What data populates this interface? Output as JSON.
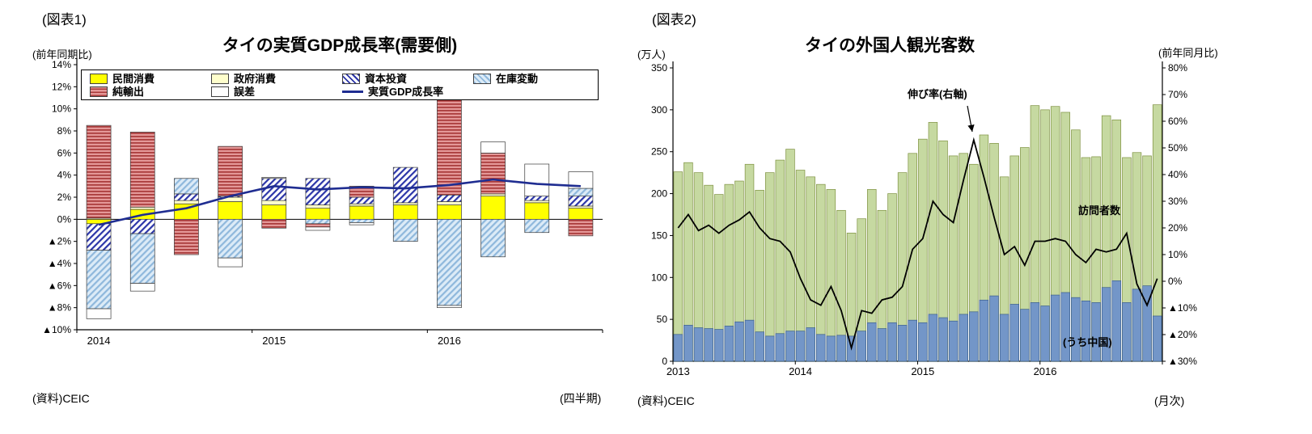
{
  "fig1": {
    "label": "(図表1)",
    "y_axis_caption": "(前年同期比)",
    "source": "(資料)CEIC",
    "x_caption": "(四半期)"
  },
  "fig2": {
    "label": "(図表2)",
    "y_axis_caption_left": "(万人)",
    "y_axis_caption_right": "(前年同月比)",
    "source": "(資料)CEIC",
    "x_caption": "(月次)"
  },
  "chart_data": [
    {
      "type": "bar",
      "variant": "stacked-bar-with-line",
      "title": "タイの実質GDP成長率(需要側)",
      "x_categories": [
        "2014Q1",
        "2014Q2",
        "2014Q3",
        "2014Q4",
        "2015Q1",
        "2015Q2",
        "2015Q3",
        "2015Q4",
        "2016Q1",
        "2016Q2",
        "2016Q3",
        "2016Q4"
      ],
      "x_year_labels": [
        {
          "label": "2014",
          "slot": 0
        },
        {
          "label": "2015",
          "slot": 4
        },
        {
          "label": "2016",
          "slot": 8
        }
      ],
      "ylim": [
        -10,
        14
      ],
      "y_tick_values": [
        14,
        12,
        10,
        8,
        6,
        4,
        2,
        0,
        -2,
        -4,
        -6,
        -8,
        -10
      ],
      "y_tick_labels": [
        "14%",
        "12%",
        "10%",
        "8%",
        "6%",
        "4%",
        "2%",
        "0%",
        "▲2%",
        "▲4%",
        "▲6%",
        "▲8%",
        "▲10%"
      ],
      "grid": false,
      "legend_position": "top-inside-box",
      "series": [
        {
          "name": "民間消費",
          "swatch": {
            "kind": "solid",
            "bg": "#FFFF00"
          },
          "values": [
            -0.4,
            0.9,
            1.4,
            1.6,
            1.3,
            1.0,
            1.2,
            1.3,
            1.3,
            2.1,
            1.5,
            1.0
          ]
        },
        {
          "name": "政府消費",
          "swatch": {
            "kind": "solid",
            "bg": "#FFFFCC"
          },
          "values": [
            0.1,
            0.2,
            0.3,
            0.4,
            0.4,
            0.3,
            0.2,
            0.2,
            0.3,
            0.2,
            0.2,
            0.2
          ]
        },
        {
          "name": "資本投資",
          "swatch": {
            "kind": "diagonal",
            "fg": "#2B35A8",
            "bg": "#FFFFFF"
          },
          "values": [
            -2.4,
            -1.3,
            0.6,
            0.1,
            2.0,
            2.4,
            0.6,
            3.2,
            0.6,
            0.0,
            0.4,
            0.9
          ]
        },
        {
          "name": "在庫変動",
          "swatch": {
            "kind": "diagonal",
            "fg": "#8FB8DC",
            "bg": "#DCEBF7"
          },
          "values": [
            -5.3,
            -4.5,
            1.4,
            -3.5,
            0.0,
            -0.4,
            -0.3,
            -2.0,
            -7.8,
            -3.4,
            -1.2,
            0.7
          ]
        },
        {
          "name": "純輸出",
          "swatch": {
            "kind": "horizontal",
            "fg": "#A93A3A",
            "bg": "#E49898"
          },
          "values": [
            8.4,
            6.8,
            -3.2,
            4.5,
            -0.8,
            -0.3,
            1.0,
            0.0,
            8.8,
            3.7,
            0.0,
            -1.5
          ]
        },
        {
          "name": "誤差",
          "swatch": {
            "kind": "solid",
            "bg": "#FFFFFF"
          },
          "values": [
            -0.9,
            -0.7,
            0.0,
            -0.8,
            0.1,
            -0.3,
            -0.2,
            0.0,
            -0.2,
            1.0,
            2.9,
            1.5
          ]
        }
      ],
      "line_series": {
        "name": "実質GDP成長率",
        "color": "#1F2D91",
        "values": [
          -0.5,
          0.4,
          1.0,
          2.1,
          3.0,
          2.7,
          2.9,
          2.8,
          3.1,
          3.6,
          3.2,
          3.0
        ]
      }
    },
    {
      "type": "bar",
      "variant": "stacked-bar-with-line",
      "title": "タイの外国人観光客数",
      "x_categories": [
        "2013-01",
        "2013-02",
        "2013-03",
        "2013-04",
        "2013-05",
        "2013-06",
        "2013-07",
        "2013-08",
        "2013-09",
        "2013-10",
        "2013-11",
        "2013-12",
        "2014-01",
        "2014-02",
        "2014-03",
        "2014-04",
        "2014-05",
        "2014-06",
        "2014-07",
        "2014-08",
        "2014-09",
        "2014-10",
        "2014-11",
        "2014-12",
        "2015-01",
        "2015-02",
        "2015-03",
        "2015-04",
        "2015-05",
        "2015-06",
        "2015-07",
        "2015-08",
        "2015-09",
        "2015-10",
        "2015-11",
        "2015-12",
        "2016-01",
        "2016-02",
        "2016-03",
        "2016-04",
        "2016-05",
        "2016-06",
        "2016-07",
        "2016-08",
        "2016-09",
        "2016-10",
        "2016-11",
        "2016-12"
      ],
      "x_year_labels": [
        {
          "label": "2013",
          "slot": 0
        },
        {
          "label": "2014",
          "slot": 12
        },
        {
          "label": "2015",
          "slot": 24
        },
        {
          "label": "2016",
          "slot": 36
        }
      ],
      "ylim_left": [
        0,
        350
      ],
      "left_tick_values": [
        350,
        300,
        250,
        200,
        150,
        100,
        50,
        0
      ],
      "left_tick_labels": [
        "350",
        "300",
        "250",
        "200",
        "150",
        "100",
        "50",
        "0"
      ],
      "ylim_right": [
        -30,
        80
      ],
      "right_tick_values": [
        80,
        70,
        60,
        50,
        40,
        30,
        20,
        10,
        0,
        -10,
        -20,
        -30
      ],
      "right_tick_labels": [
        "80%",
        "70%",
        "60%",
        "50%",
        "40%",
        "30%",
        "20%",
        "10%",
        "0%",
        "▲10%",
        "▲20%",
        "▲30%"
      ],
      "grid": false,
      "series": [
        {
          "name": "訪問者数",
          "swatch": {
            "kind": "solid",
            "bg": "#C6D9A1",
            "border": "#7E9140"
          },
          "values": [
            226,
            237,
            225,
            210,
            199,
            211,
            215,
            235,
            204,
            225,
            240,
            253,
            228,
            220,
            211,
            205,
            180,
            153,
            170,
            205,
            180,
            200,
            225,
            248,
            265,
            285,
            263,
            245,
            248,
            235,
            270,
            260,
            220,
            245,
            255,
            305,
            300,
            304,
            297,
            276,
            243,
            244,
            293,
            288,
            243,
            249,
            245,
            306
          ]
        },
        {
          "name": "(うち中国)",
          "swatch": {
            "kind": "solid",
            "bg": "#7396C8",
            "border": "#3A5E8C"
          },
          "values": [
            32,
            43,
            40,
            39,
            38,
            42,
            47,
            49,
            35,
            30,
            33,
            36,
            36,
            40,
            32,
            30,
            31,
            30,
            36,
            46,
            39,
            46,
            43,
            49,
            46,
            56,
            52,
            48,
            56,
            59,
            73,
            78,
            56,
            68,
            62,
            70,
            66,
            79,
            82,
            76,
            72,
            70,
            88,
            96,
            70,
            86,
            90,
            54
          ]
        }
      ],
      "line_series": {
        "name": "伸び率(右軸)",
        "color": "#000000",
        "values": [
          20,
          25,
          19,
          21,
          18,
          21,
          23,
          26,
          20,
          16,
          15,
          11,
          1,
          -7,
          -9,
          -2,
          -11,
          -25,
          -11,
          -12,
          -7,
          -6,
          -2,
          12,
          16,
          30,
          25,
          22,
          38,
          53,
          39,
          24,
          10,
          13,
          6,
          15,
          15,
          16,
          15,
          10,
          7,
          12,
          11,
          12,
          18,
          -1,
          -9,
          1
        ]
      },
      "annotations": {
        "line_label": "伸び率(右軸)",
        "visitors_label": "訪問者数",
        "china_label": "(うち中国)"
      }
    }
  ]
}
